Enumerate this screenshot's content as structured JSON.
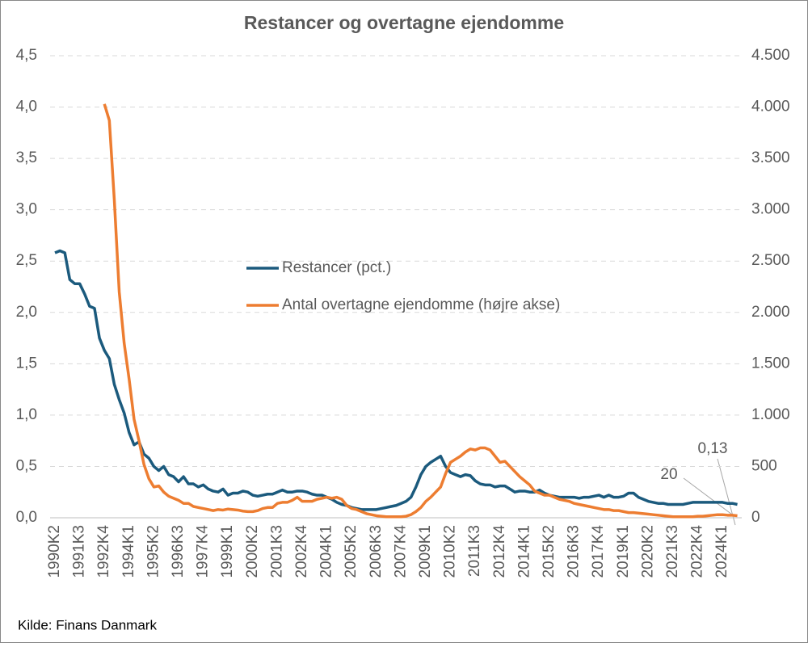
{
  "chart_data": {
    "type": "line",
    "title": "Restancer og overtagne ejendomme",
    "source": "Kilde: Finans Danmark",
    "categories": [
      "1990K2",
      null,
      null,
      null,
      null,
      "1991K3",
      null,
      null,
      null,
      null,
      "1992K4",
      null,
      null,
      null,
      null,
      "1994K1",
      null,
      null,
      null,
      null,
      "1995K2",
      null,
      null,
      null,
      null,
      "1996K3",
      null,
      null,
      null,
      null,
      "1997K4",
      null,
      null,
      null,
      null,
      "1999K1",
      null,
      null,
      null,
      null,
      "2000K2",
      null,
      null,
      null,
      null,
      "2001K3",
      null,
      null,
      null,
      null,
      "2002K4",
      null,
      null,
      null,
      null,
      "2004K1",
      null,
      null,
      null,
      null,
      "2005K2",
      null,
      null,
      null,
      null,
      "2006K3",
      null,
      null,
      null,
      null,
      "2007K4",
      null,
      null,
      null,
      null,
      "2009K1",
      null,
      null,
      null,
      null,
      "2010K2",
      null,
      null,
      null,
      null,
      "2011K3",
      null,
      null,
      null,
      null,
      "2012K4",
      null,
      null,
      null,
      null,
      "2014K1",
      null,
      null,
      null,
      null,
      "2015K2",
      null,
      null,
      null,
      null,
      "2016K3",
      null,
      null,
      null,
      null,
      "2017K4",
      null,
      null,
      null,
      null,
      "2019K1",
      null,
      null,
      null,
      null,
      "2020K2",
      null,
      null,
      null,
      null,
      "2021K3",
      null,
      null,
      null,
      null,
      "2022K4",
      null,
      null,
      null,
      null,
      "2024K1",
      null,
      null,
      null
    ],
    "series": [
      {
        "name": "Restancer (pct.)",
        "color": "#1b5a7d",
        "values": [
          2.58,
          2.6,
          2.58,
          2.32,
          2.28,
          2.28,
          2.18,
          2.06,
          2.04,
          1.75,
          1.63,
          1.55,
          1.3,
          1.15,
          1.02,
          0.83,
          0.71,
          0.74,
          0.62,
          0.58,
          0.5,
          0.46,
          0.5,
          0.42,
          0.4,
          0.35,
          0.4,
          0.33,
          0.33,
          0.3,
          0.32,
          0.28,
          0.26,
          0.25,
          0.28,
          0.22,
          0.24,
          0.24,
          0.26,
          0.25,
          0.22,
          0.21,
          0.22,
          0.23,
          0.23,
          0.25,
          0.27,
          0.25,
          0.25,
          0.26,
          0.26,
          0.25,
          0.23,
          0.22,
          0.22,
          0.2,
          0.18,
          0.15,
          0.13,
          0.12,
          0.1,
          0.09,
          0.08,
          0.08,
          0.08,
          0.08,
          0.09,
          0.1,
          0.11,
          0.12,
          0.14,
          0.16,
          0.2,
          0.3,
          0.42,
          0.5,
          0.54,
          0.57,
          0.6,
          0.5,
          0.44,
          0.42,
          0.4,
          0.42,
          0.41,
          0.36,
          0.33,
          0.32,
          0.32,
          0.3,
          0.31,
          0.31,
          0.28,
          0.25,
          0.26,
          0.26,
          0.25,
          0.25,
          0.27,
          0.24,
          0.22,
          0.21,
          0.2,
          0.2,
          0.2,
          0.2,
          0.19,
          0.2,
          0.2,
          0.21,
          0.22,
          0.2,
          0.22,
          0.2,
          0.2,
          0.21,
          0.24,
          0.24,
          0.2,
          0.18,
          0.16,
          0.15,
          0.14,
          0.14,
          0.13,
          0.13,
          0.13,
          0.13,
          0.14,
          0.15,
          0.15,
          0.15,
          0.15,
          0.15,
          0.15,
          0.15,
          0.14,
          0.14,
          0.13
        ],
        "value_labels": [
          null,
          null,
          null,
          null,
          null,
          null,
          null,
          null,
          null,
          null,
          null,
          null,
          null,
          null,
          null,
          null,
          null,
          null,
          null,
          null,
          null,
          null,
          null,
          null,
          null,
          null,
          null,
          null,
          null,
          null,
          null,
          null,
          null,
          null,
          null,
          null,
          null,
          null,
          null,
          null,
          null,
          null,
          null,
          null,
          null,
          null,
          null,
          null,
          null,
          null,
          null,
          null,
          null,
          null,
          null,
          null,
          null,
          null,
          null,
          null,
          null,
          null,
          null,
          null,
          null,
          null,
          null,
          null,
          null,
          null,
          null,
          null,
          null,
          null,
          null,
          null,
          null,
          null,
          null,
          null,
          null,
          null,
          null,
          null,
          null,
          null,
          null,
          null,
          null,
          null,
          null,
          null,
          null,
          null,
          null,
          null,
          null,
          null,
          null,
          null,
          null,
          null,
          null,
          null,
          null,
          null,
          null,
          null,
          null,
          null,
          null,
          null,
          null,
          null,
          null,
          null,
          null,
          null,
          null,
          null,
          null,
          null,
          null,
          null,
          null,
          null,
          null,
          null,
          null,
          null,
          null,
          null,
          null,
          null,
          null,
          null,
          null,
          null,
          "0,13"
        ]
      },
      {
        "name": "Antal overtagne ejendomme (højre akse)",
        "color": "#ed7d31",
        "axis": "y2",
        "values": [
          null,
          null,
          null,
          null,
          null,
          null,
          null,
          null,
          null,
          null,
          4030,
          3870,
          3100,
          2200,
          1700,
          1350,
          960,
          750,
          520,
          380,
          300,
          310,
          250,
          210,
          190,
          170,
          140,
          140,
          110,
          100,
          90,
          80,
          70,
          80,
          75,
          85,
          80,
          75,
          65,
          60,
          60,
          70,
          90,
          100,
          100,
          140,
          150,
          150,
          170,
          200,
          160,
          160,
          160,
          180,
          190,
          200,
          190,
          200,
          180,
          120,
          90,
          80,
          60,
          40,
          30,
          20,
          15,
          10,
          10,
          10,
          10,
          15,
          30,
          60,
          100,
          160,
          200,
          250,
          300,
          430,
          540,
          570,
          600,
          640,
          670,
          660,
          680,
          680,
          660,
          600,
          540,
          550,
          500,
          450,
          400,
          360,
          320,
          260,
          240,
          220,
          220,
          200,
          180,
          170,
          160,
          140,
          130,
          120,
          110,
          100,
          90,
          80,
          80,
          70,
          70,
          60,
          50,
          50,
          45,
          40,
          35,
          30,
          25,
          20,
          15,
          10,
          10,
          10,
          10,
          10,
          15,
          15,
          20,
          25,
          30,
          30,
          25,
          25,
          20
        ],
        "value_labels": [
          null,
          null,
          null,
          null,
          null,
          null,
          null,
          null,
          null,
          null,
          null,
          null,
          null,
          null,
          null,
          null,
          null,
          null,
          null,
          null,
          null,
          null,
          null,
          null,
          null,
          null,
          null,
          null,
          null,
          null,
          null,
          null,
          null,
          null,
          null,
          null,
          null,
          null,
          null,
          null,
          null,
          null,
          null,
          null,
          null,
          null,
          null,
          null,
          null,
          null,
          null,
          null,
          null,
          null,
          null,
          null,
          null,
          null,
          null,
          null,
          null,
          null,
          null,
          null,
          null,
          null,
          null,
          null,
          null,
          null,
          null,
          null,
          null,
          null,
          null,
          null,
          null,
          null,
          null,
          null,
          null,
          null,
          null,
          null,
          null,
          null,
          null,
          null,
          null,
          null,
          null,
          null,
          null,
          null,
          null,
          null,
          null,
          null,
          null,
          null,
          null,
          null,
          null,
          null,
          null,
          null,
          null,
          null,
          null,
          null,
          null,
          null,
          null,
          null,
          null,
          null,
          null,
          null,
          null,
          null,
          null,
          null,
          null,
          null,
          null,
          null,
          null,
          null,
          null,
          null,
          null,
          null,
          null,
          null,
          null,
          null,
          null,
          null,
          "20"
        ]
      }
    ],
    "ylim": [
      0,
      4.5
    ],
    "yticks": [
      {
        "value": 0,
        "label": "0,0"
      },
      {
        "value": 0.5,
        "label": "0,5"
      },
      {
        "value": 1,
        "label": "1,0"
      },
      {
        "value": 1.5,
        "label": "1,5"
      },
      {
        "value": 2,
        "label": "2,0"
      },
      {
        "value": 2.5,
        "label": "2,5"
      },
      {
        "value": 3,
        "label": "3,0"
      },
      {
        "value": 3.5,
        "label": "3,5"
      },
      {
        "value": 4,
        "label": "4,0"
      },
      {
        "value": 4.5,
        "label": "4,5"
      }
    ],
    "y2lim": [
      0,
      4500
    ],
    "y2ticks": [
      0,
      500,
      {
        "value": 1000,
        "label": "1.000"
      },
      {
        "value": 1500,
        "label": "1.500"
      },
      {
        "value": 2000,
        "label": "2.000"
      },
      {
        "value": 2500,
        "label": "2.500"
      },
      {
        "value": 3000,
        "label": "3.000"
      },
      {
        "value": 3500,
        "label": "3.500"
      },
      {
        "value": 4000,
        "label": "4.000"
      },
      {
        "value": 4500,
        "label": "4.500"
      }
    ],
    "grid": true
  }
}
